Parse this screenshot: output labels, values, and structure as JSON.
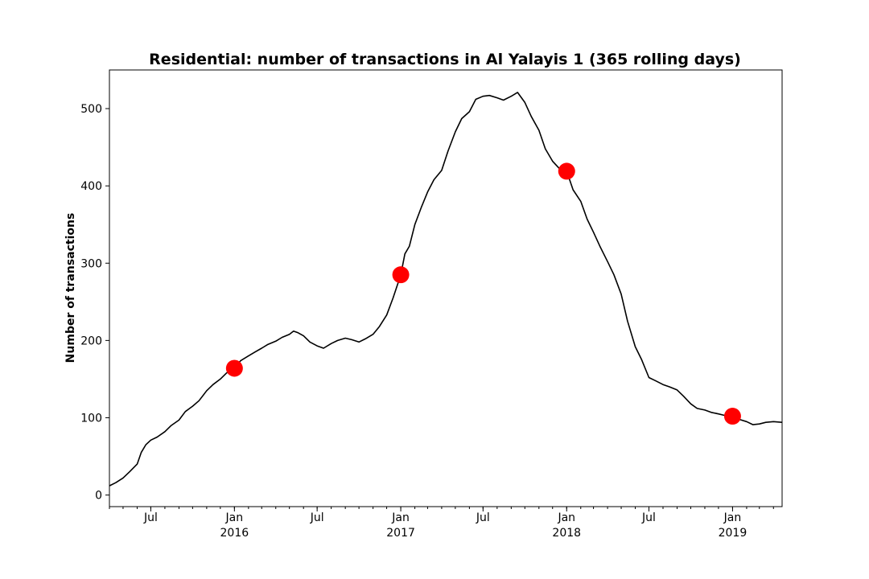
{
  "chart_data": {
    "type": "line",
    "title": "Residential: number of transactions in Al Yalayis 1 (365 rolling days)",
    "xlabel": "",
    "ylabel": "Number of transactions",
    "x_type": "date",
    "xlim": [
      "2015-04-01",
      "2019-04-20"
    ],
    "ylim": [
      -15,
      550
    ],
    "y_ticks": [
      0,
      100,
      200,
      300,
      400,
      500
    ],
    "x_ticks": [
      {
        "date": "2015-07-01",
        "labels": [
          "Jul"
        ]
      },
      {
        "date": "2016-01-01",
        "labels": [
          "Jan",
          "2016"
        ]
      },
      {
        "date": "2016-07-01",
        "labels": [
          "Jul"
        ]
      },
      {
        "date": "2017-01-01",
        "labels": [
          "Jan",
          "2017"
        ]
      },
      {
        "date": "2017-07-01",
        "labels": [
          "Jul"
        ]
      },
      {
        "date": "2018-01-01",
        "labels": [
          "Jan",
          "2018"
        ]
      },
      {
        "date": "2018-07-01",
        "labels": [
          "Jul"
        ]
      },
      {
        "date": "2019-01-01",
        "labels": [
          "Jan",
          "2019"
        ]
      }
    ],
    "grid": false,
    "series": [
      {
        "color": "#000000",
        "points": [
          [
            "2015-04-01",
            12
          ],
          [
            "2015-04-15",
            16
          ],
          [
            "2015-05-01",
            22
          ],
          [
            "2015-05-15",
            30
          ],
          [
            "2015-06-01",
            40
          ],
          [
            "2015-06-10",
            55
          ],
          [
            "2015-06-20",
            65
          ],
          [
            "2015-07-01",
            71
          ],
          [
            "2015-07-15",
            75
          ],
          [
            "2015-08-01",
            82
          ],
          [
            "2015-08-15",
            90
          ],
          [
            "2015-09-01",
            97
          ],
          [
            "2015-09-15",
            108
          ],
          [
            "2015-10-01",
            115
          ],
          [
            "2015-10-15",
            122
          ],
          [
            "2015-11-01",
            135
          ],
          [
            "2015-11-15",
            143
          ],
          [
            "2015-12-01",
            150
          ],
          [
            "2015-12-15",
            158
          ],
          [
            "2016-01-01",
            164
          ],
          [
            "2016-01-15",
            174
          ],
          [
            "2016-02-01",
            180
          ],
          [
            "2016-02-15",
            185
          ],
          [
            "2016-03-01",
            190
          ],
          [
            "2016-03-15",
            195
          ],
          [
            "2016-04-01",
            199
          ],
          [
            "2016-04-15",
            204
          ],
          [
            "2016-05-01",
            208
          ],
          [
            "2016-05-10",
            212
          ],
          [
            "2016-05-20",
            210
          ],
          [
            "2016-06-01",
            206
          ],
          [
            "2016-06-15",
            198
          ],
          [
            "2016-07-01",
            193
          ],
          [
            "2016-07-15",
            190
          ],
          [
            "2016-08-01",
            196
          ],
          [
            "2016-08-15",
            200
          ],
          [
            "2016-09-01",
            203
          ],
          [
            "2016-09-15",
            201
          ],
          [
            "2016-10-01",
            198
          ],
          [
            "2016-10-15",
            202
          ],
          [
            "2016-11-01",
            208
          ],
          [
            "2016-11-15",
            218
          ],
          [
            "2016-12-01",
            233
          ],
          [
            "2016-12-15",
            255
          ],
          [
            "2017-01-01",
            285
          ],
          [
            "2017-01-10",
            312
          ],
          [
            "2017-01-20",
            322
          ],
          [
            "2017-02-01",
            350
          ],
          [
            "2017-02-15",
            372
          ],
          [
            "2017-03-01",
            392
          ],
          [
            "2017-03-15",
            408
          ],
          [
            "2017-04-01",
            420
          ],
          [
            "2017-04-15",
            445
          ],
          [
            "2017-05-01",
            470
          ],
          [
            "2017-05-15",
            487
          ],
          [
            "2017-06-01",
            496
          ],
          [
            "2017-06-15",
            512
          ],
          [
            "2017-07-01",
            516
          ],
          [
            "2017-07-15",
            517
          ],
          [
            "2017-08-01",
            514
          ],
          [
            "2017-08-15",
            511
          ],
          [
            "2017-09-01",
            516
          ],
          [
            "2017-09-15",
            521
          ],
          [
            "2017-10-01",
            508
          ],
          [
            "2017-10-15",
            490
          ],
          [
            "2017-11-01",
            472
          ],
          [
            "2017-11-15",
            448
          ],
          [
            "2017-12-01",
            432
          ],
          [
            "2017-12-15",
            423
          ],
          [
            "2018-01-01",
            419
          ],
          [
            "2018-01-15",
            395
          ],
          [
            "2018-02-01",
            380
          ],
          [
            "2018-02-15",
            357
          ],
          [
            "2018-03-01",
            340
          ],
          [
            "2018-03-15",
            322
          ],
          [
            "2018-04-01",
            302
          ],
          [
            "2018-04-15",
            285
          ],
          [
            "2018-05-01",
            260
          ],
          [
            "2018-05-15",
            225
          ],
          [
            "2018-06-01",
            192
          ],
          [
            "2018-06-15",
            175
          ],
          [
            "2018-07-01",
            152
          ],
          [
            "2018-07-15",
            148
          ],
          [
            "2018-08-01",
            143
          ],
          [
            "2018-08-15",
            140
          ],
          [
            "2018-09-01",
            136
          ],
          [
            "2018-09-15",
            128
          ],
          [
            "2018-10-01",
            118
          ],
          [
            "2018-10-15",
            112
          ],
          [
            "2018-11-01",
            110
          ],
          [
            "2018-11-15",
            107
          ],
          [
            "2018-12-01",
            105
          ],
          [
            "2018-12-15",
            103
          ],
          [
            "2019-01-01",
            102
          ],
          [
            "2019-01-15",
            98
          ],
          [
            "2019-02-01",
            95
          ],
          [
            "2019-02-15",
            91
          ],
          [
            "2019-03-01",
            92
          ],
          [
            "2019-03-15",
            94
          ],
          [
            "2019-04-01",
            95
          ],
          [
            "2019-04-20",
            94
          ]
        ]
      }
    ],
    "markers": {
      "color": "#ff0000",
      "points": [
        [
          "2016-01-01",
          164
        ],
        [
          "2017-01-01",
          285
        ],
        [
          "2018-01-01",
          419
        ],
        [
          "2019-01-01",
          102
        ]
      ]
    }
  }
}
